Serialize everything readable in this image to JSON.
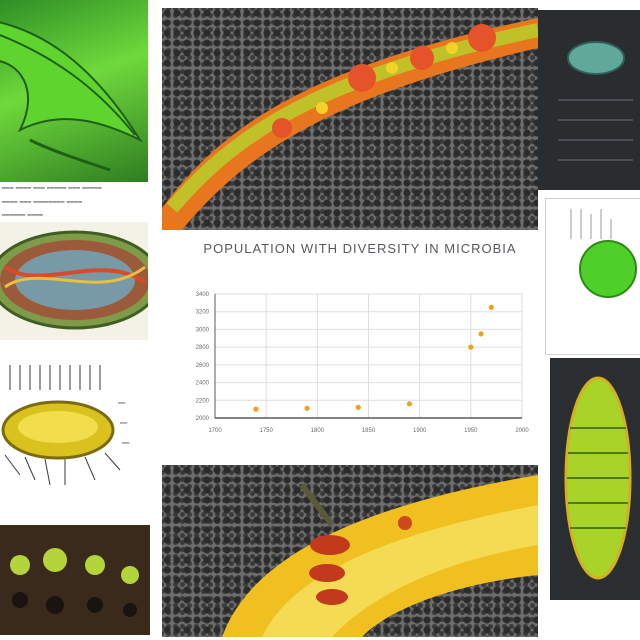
{
  "chart_data": {
    "type": "scatter",
    "title": "POPULATION WITH DIVERSITY IN MICROBIA",
    "xlabel": "",
    "ylabel": "",
    "x_ticks": [
      "1700",
      "1750",
      "1800",
      "1850",
      "1900",
      "1950",
      "2000"
    ],
    "y_ticks": [
      "3400",
      "3200",
      "3000",
      "2800",
      "2600",
      "2400",
      "2200",
      "2000"
    ],
    "xlim": [
      1700,
      2000
    ],
    "ylim": [
      2000,
      3400
    ],
    "grid": true,
    "points_color": "#f0a020",
    "series": [
      {
        "x": [
          1740,
          1790,
          1840,
          1890,
          1950,
          1960,
          1970
        ],
        "y": [
          2100,
          2110,
          2120,
          2160,
          2800,
          2950,
          3250
        ]
      }
    ]
  },
  "colors": {
    "leaf_green": "#4fbf2a",
    "orange": "#e8761e",
    "yellow": "#e8cf28",
    "mesh_gray": "#6e6e6e",
    "dark_panel": "#2a2d30"
  }
}
